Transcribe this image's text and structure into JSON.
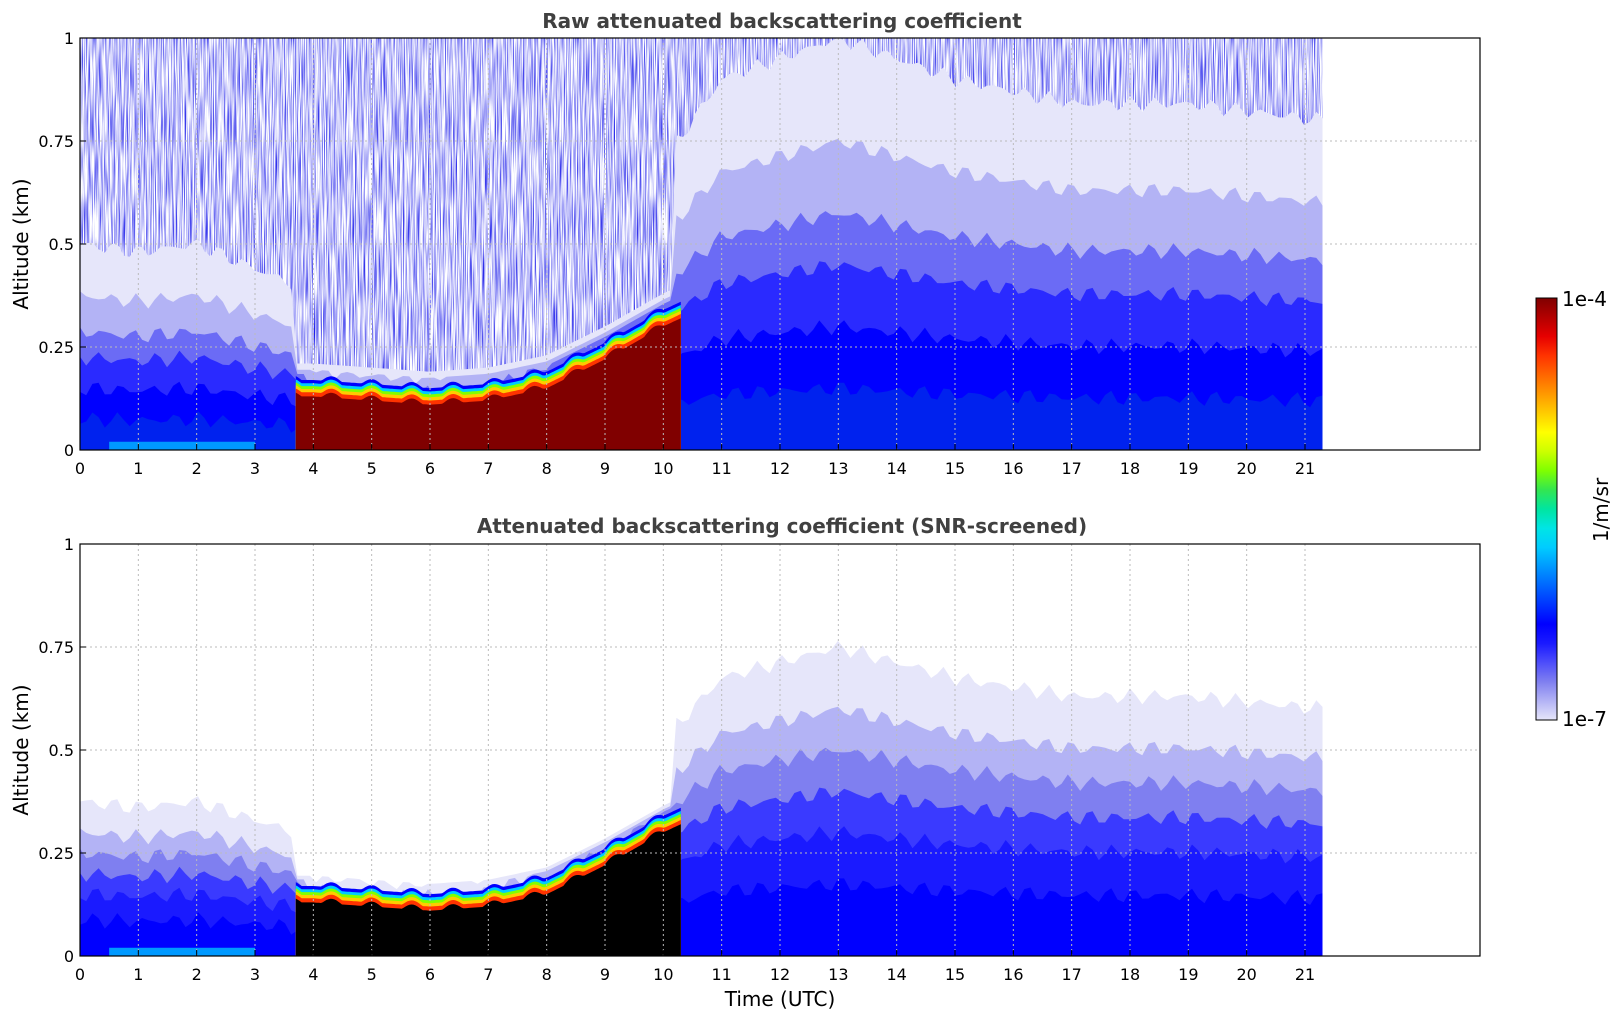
{
  "chart_data": [
    {
      "type": "heatmap",
      "title": "Raw attenuated backscattering coefficient",
      "xlabel": "",
      "ylabel": "Altitude (km)",
      "xlim": [
        0,
        24
      ],
      "ylim": [
        0,
        1
      ],
      "xticks": [
        0,
        1,
        2,
        3,
        4,
        5,
        6,
        7,
        8,
        9,
        10,
        11,
        12,
        13,
        14,
        15,
        16,
        17,
        18,
        19,
        20,
        21
      ],
      "yticks": [
        0,
        0.25,
        0.5,
        0.75,
        1
      ],
      "ytick_labels": [
        "0",
        "0.25",
        "0.5",
        "0.75",
        "1"
      ],
      "grid": true,
      "data_end_time": 21.3,
      "screened": false,
      "boundary_layer_top_km": {
        "time": [
          0,
          1,
          2,
          3,
          3.7,
          4,
          5,
          6,
          7,
          8,
          9,
          10,
          10.5,
          11,
          13,
          15,
          17,
          19,
          21.3
        ],
        "value": [
          0.25,
          0.24,
          0.25,
          0.22,
          0.2,
          0.13,
          0.12,
          0.12,
          0.13,
          0.18,
          0.26,
          0.35,
          0.4,
          0.45,
          0.5,
          0.45,
          0.42,
          0.42,
          0.4
        ]
      },
      "aerosol_layer_top_km": {
        "time": [
          0,
          1,
          2,
          3,
          3.7,
          4,
          5,
          6,
          7,
          8,
          9,
          9.5,
          10,
          10.3
        ],
        "value": [
          0.04,
          0.03,
          0.03,
          0.05,
          0.15,
          0.15,
          0.14,
          0.13,
          0.14,
          0.17,
          0.24,
          0.28,
          0.32,
          0.34
        ]
      }
    },
    {
      "type": "heatmap",
      "title": "Attenuated backscattering coefficient (SNR-screened)",
      "xlabel": "Time (UTC)",
      "ylabel": "Altitude (km)",
      "xlim": [
        0,
        24
      ],
      "ylim": [
        0,
        1
      ],
      "xticks": [
        0,
        1,
        2,
        3,
        4,
        5,
        6,
        7,
        8,
        9,
        10,
        11,
        12,
        13,
        14,
        15,
        16,
        17,
        18,
        19,
        20,
        21
      ],
      "yticks": [
        0,
        0.25,
        0.5,
        0.75,
        1
      ],
      "ytick_labels": [
        "0",
        "0.25",
        "0.5",
        "0.75",
        "1"
      ],
      "grid": true,
      "data_end_time": 21.3,
      "screened": true,
      "boundary_layer_top_km": {
        "time": [
          0,
          1,
          2,
          3,
          3.7,
          4,
          5,
          6,
          7,
          8,
          9,
          10,
          10.5,
          11,
          13,
          15,
          17,
          19,
          21.3
        ],
        "value": [
          0.25,
          0.24,
          0.25,
          0.22,
          0.2,
          0.13,
          0.12,
          0.12,
          0.13,
          0.18,
          0.26,
          0.35,
          0.4,
          0.45,
          0.5,
          0.45,
          0.42,
          0.42,
          0.4
        ]
      },
      "aerosol_layer_top_km": {
        "time": [
          0,
          1,
          2,
          3,
          3.7,
          4,
          5,
          6,
          7,
          8,
          9,
          9.5,
          10,
          10.3
        ],
        "value": [
          0.04,
          0.03,
          0.03,
          0.05,
          0.15,
          0.15,
          0.14,
          0.13,
          0.14,
          0.17,
          0.24,
          0.28,
          0.32,
          0.34
        ]
      }
    }
  ],
  "colorbar": {
    "label": "1/m/sr",
    "max_label": "1e-4",
    "min_label": "1e-7",
    "min": 1e-07,
    "max": 0.0001,
    "scale": "log",
    "colors": [
      "#e6e6fa",
      "#b3b3f5",
      "#7f7ff0",
      "#4d4dfa",
      "#1a1aff",
      "#0000ff",
      "#0033ff",
      "#0066ff",
      "#0099ff",
      "#00ccff",
      "#00e5e5",
      "#00e5a0",
      "#33e650",
      "#80ff00",
      "#ccff00",
      "#ffff00",
      "#ffcc00",
      "#ff9900",
      "#ff6600",
      "#ff3300",
      "#e60000",
      "#b30000",
      "#800000"
    ]
  }
}
